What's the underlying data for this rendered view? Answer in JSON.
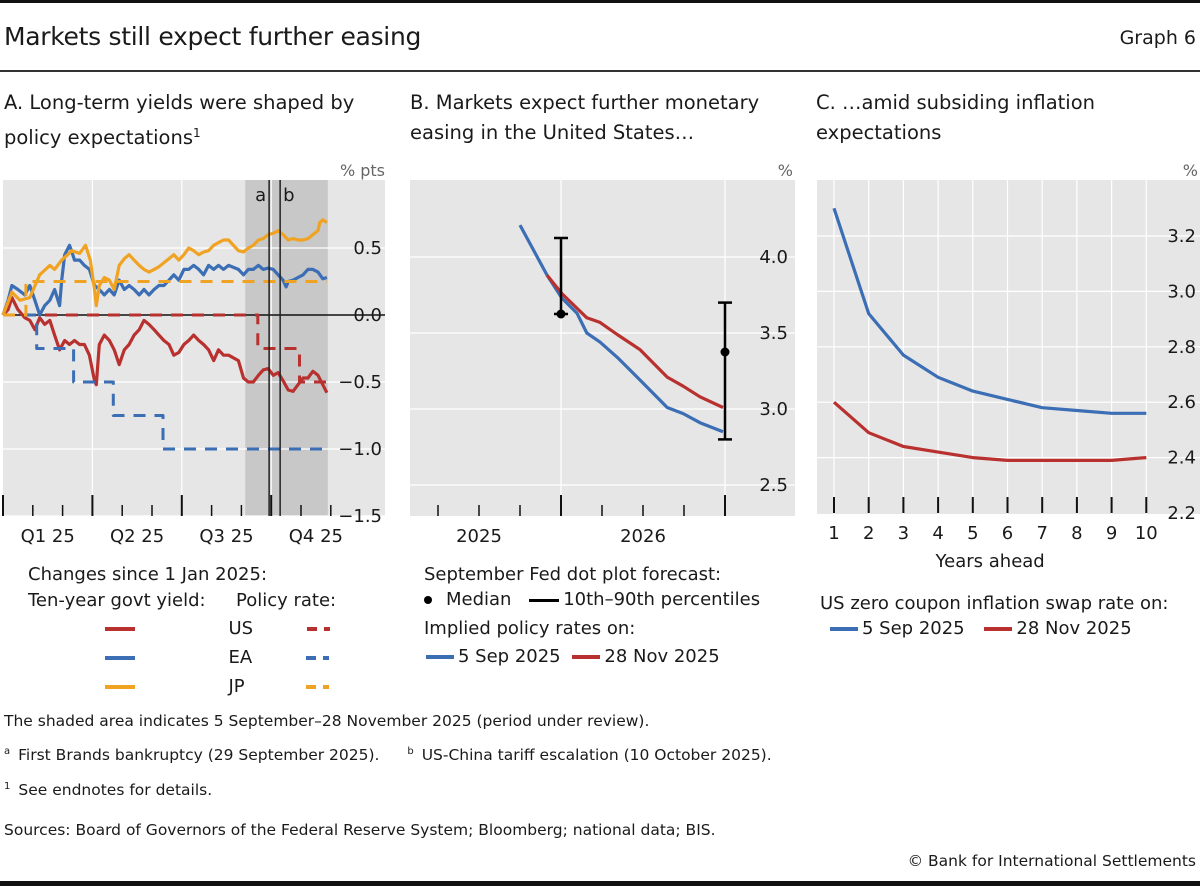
{
  "header": {
    "title": "Markets still expect further easing",
    "graph_number": "Graph 6"
  },
  "colors": {
    "us": "#b8312f",
    "ea": "#3b6eb4",
    "jp": "#f0a323",
    "plot_bg": "#e6e6e6",
    "shade": "#c8c8c8",
    "grid": "#ffffff",
    "axis": "#111111"
  },
  "panels": {
    "a": {
      "title": "A. Long-term yields were shaped by policy expectations",
      "title_sup": "1"
    },
    "b": {
      "title": "B. Markets expect further monetary easing in the United States…"
    },
    "c": {
      "title": "C. …amid subsiding inflation expectations"
    }
  },
  "legends": {
    "a": {
      "heading": "Changes since 1 Jan 2025:",
      "col1": "Ten-year govt yield:",
      "col2": "Policy rate:",
      "rows": [
        "US",
        "EA",
        "JP"
      ]
    },
    "b": {
      "heading": "September Fed dot plot forecast:",
      "median": "Median",
      "range": "10th–90th percentiles",
      "heading2": "Implied policy rates on:",
      "s1": "5 Sep 2025",
      "s2": "28 Nov 2025"
    },
    "c": {
      "heading": "US zero coupon inflation swap rate on:",
      "s1": "5 Sep 2025",
      "s2": "28 Nov 2025"
    }
  },
  "footnotes": {
    "shaded": "The shaded area indicates 5 September–28 November 2025 (period under review).",
    "a_mark": "a",
    "a_text": "First Brands bankruptcy (29 September 2025).",
    "b_mark": "b",
    "b_text": "US-China tariff escalation (10 October 2025).",
    "n1_mark": "1",
    "n1_text": "See endnotes for details.",
    "sources": "Sources: Board of Governors of the Federal Reserve System; Bloomberg; national data; BIS.",
    "copyright": "© Bank for International Settlements"
  },
  "chart_data": [
    {
      "id": "a",
      "type": "line",
      "title": "A. Long-term yields were shaped by policy expectations",
      "xlabel": "",
      "ylabel": "% pts",
      "x_unit": "months since 1 Jan 2025",
      "xlim": [
        0,
        12
      ],
      "ylim": [
        -1.6,
        0.85
      ],
      "yticks": [
        0.5,
        0.0,
        -0.5,
        -1.0,
        -1.5
      ],
      "ytick_labels": [
        "0.5",
        "0.0",
        "−0.5",
        "−1.0",
        "−1.5"
      ],
      "xtick_labels": [
        {
          "label": "Q1 25",
          "x": 1.5
        },
        {
          "label": "Q2 25",
          "x": 4.5
        },
        {
          "label": "Q3 25",
          "x": 7.5
        },
        {
          "label": "Q4 25",
          "x": 10.5
        }
      ],
      "major_ticks": [
        0,
        3,
        6,
        9
      ],
      "minor_ticks": [
        1,
        2,
        4,
        5,
        7,
        8,
        10,
        11
      ],
      "grid": true,
      "shaded_range": [
        8.13,
        10.9
      ],
      "event_lines": [
        {
          "label": "a",
          "x": 8.93
        },
        {
          "label": "b",
          "x": 9.3
        }
      ],
      "series": [
        {
          "name": "US ten-year govt yield",
          "color_key": "us",
          "style": "solid",
          "x": [
            0,
            0.17,
            0.3,
            0.5,
            0.73,
            0.9,
            1.07,
            1.23,
            1.4,
            1.57,
            1.73,
            1.9,
            2.07,
            2.23,
            2.4,
            2.57,
            2.73,
            2.9,
            3.07,
            3.13,
            3.23,
            3.4,
            3.57,
            3.73,
            3.9,
            4.07,
            4.23,
            4.4,
            4.57,
            4.73,
            4.9,
            5.07,
            5.23,
            5.4,
            5.57,
            5.73,
            5.9,
            6.07,
            6.23,
            6.4,
            6.57,
            6.73,
            6.9,
            7.07,
            7.23,
            7.4,
            7.57,
            7.9,
            8.07,
            8.23,
            8.4,
            8.57,
            8.73,
            8.9,
            9.07,
            9.23,
            9.4,
            9.57,
            9.73,
            9.9,
            10.07,
            10.23,
            10.4,
            10.57,
            10.73,
            10.87
          ],
          "y": [
            0,
            0.04,
            0.13,
            0.04,
            -0.02,
            -0.04,
            -0.11,
            -0.02,
            -0.07,
            -0.04,
            -0.15,
            -0.26,
            -0.19,
            -0.22,
            -0.19,
            -0.22,
            -0.22,
            -0.3,
            -0.49,
            -0.52,
            -0.22,
            -0.15,
            -0.19,
            -0.26,
            -0.37,
            -0.26,
            -0.22,
            -0.15,
            -0.11,
            -0.04,
            -0.07,
            -0.11,
            -0.15,
            -0.19,
            -0.22,
            -0.3,
            -0.28,
            -0.22,
            -0.19,
            -0.15,
            -0.19,
            -0.22,
            -0.26,
            -0.34,
            -0.26,
            -0.3,
            -0.3,
            -0.34,
            -0.47,
            -0.5,
            -0.5,
            -0.45,
            -0.41,
            -0.4,
            -0.45,
            -0.43,
            -0.49,
            -0.56,
            -0.57,
            -0.52,
            -0.47,
            -0.47,
            -0.42,
            -0.45,
            -0.52,
            -0.58
          ]
        },
        {
          "name": "EA ten-year govt yield",
          "color_key": "ea",
          "style": "solid",
          "x": [
            0,
            0.17,
            0.3,
            0.5,
            0.73,
            0.9,
            1.07,
            1.23,
            1.4,
            1.57,
            1.73,
            1.9,
            1.97,
            2.07,
            2.23,
            2.3,
            2.4,
            2.57,
            2.73,
            2.9,
            3.07,
            3.23,
            3.4,
            3.57,
            3.73,
            3.9,
            4.07,
            4.23,
            4.4,
            4.57,
            4.73,
            4.9,
            5.07,
            5.23,
            5.4,
            5.57,
            5.73,
            5.9,
            6.07,
            6.23,
            6.4,
            6.57,
            6.73,
            6.9,
            7.07,
            7.23,
            7.4,
            7.57,
            7.9,
            8.07,
            8.23,
            8.4,
            8.57,
            8.73,
            8.9,
            9.07,
            9.23,
            9.4,
            9.5,
            9.57,
            9.73,
            9.9,
            10.07,
            10.23,
            10.4,
            10.57,
            10.73,
            10.87
          ],
          "y": [
            0,
            0.11,
            0.22,
            0.19,
            0.15,
            0.22,
            0.11,
            0,
            0.07,
            0.11,
            0.19,
            0.07,
            0.26,
            0.45,
            0.52,
            0.48,
            0.41,
            0.41,
            0.37,
            0.34,
            0.22,
            0.19,
            0.15,
            0.19,
            0.15,
            0.26,
            0.19,
            0.22,
            0.19,
            0.15,
            0.19,
            0.15,
            0.19,
            0.22,
            0.22,
            0.26,
            0.3,
            0.26,
            0.34,
            0.34,
            0.37,
            0.34,
            0.3,
            0.37,
            0.34,
            0.37,
            0.34,
            0.37,
            0.34,
            0.3,
            0.34,
            0.34,
            0.37,
            0.34,
            0.35,
            0.34,
            0.3,
            0.26,
            0.21,
            0.25,
            0.26,
            0.28,
            0.3,
            0.34,
            0.34,
            0.32,
            0.27,
            0.28
          ]
        },
        {
          "name": "JP ten-year govt yield",
          "color_key": "jp",
          "style": "solid",
          "x": [
            0,
            0.3,
            0.57,
            0.9,
            1.23,
            1.57,
            1.73,
            1.97,
            2.17,
            2.3,
            2.57,
            2.77,
            2.93,
            3.07,
            3.13,
            3.23,
            3.4,
            3.57,
            3.73,
            3.9,
            4.07,
            4.23,
            4.4,
            4.57,
            4.73,
            4.9,
            5.07,
            5.23,
            5.4,
            5.57,
            5.73,
            5.9,
            6.07,
            6.23,
            6.4,
            6.57,
            6.73,
            6.9,
            7.07,
            7.23,
            7.4,
            7.57,
            7.9,
            8.07,
            8.23,
            8.4,
            8.57,
            8.73,
            8.9,
            9.07,
            9.23,
            9.4,
            9.57,
            9.73,
            9.9,
            10.07,
            10.23,
            10.4,
            10.57,
            10.63,
            10.73,
            10.87
          ],
          "y": [
            0,
            0.17,
            0.11,
            0.13,
            0.3,
            0.37,
            0.34,
            0.41,
            0.45,
            0.48,
            0.46,
            0.52,
            0.41,
            0.19,
            0.07,
            0.22,
            0.28,
            0.26,
            0.19,
            0.37,
            0.42,
            0.45,
            0.41,
            0.37,
            0.34,
            0.32,
            0.34,
            0.36,
            0.39,
            0.42,
            0.45,
            0.41,
            0.45,
            0.5,
            0.48,
            0.45,
            0.47,
            0.48,
            0.52,
            0.54,
            0.56,
            0.56,
            0.48,
            0.47,
            0.5,
            0.52,
            0.56,
            0.57,
            0.6,
            0.61,
            0.63,
            0.6,
            0.56,
            0.57,
            0.56,
            0.56,
            0.57,
            0.6,
            0.63,
            0.69,
            0.71,
            0.69
          ]
        },
        {
          "name": "US policy rate",
          "color_key": "us",
          "style": "dashed",
          "x": [
            0,
            8.55,
            8.55,
            9.95,
            9.95,
            10.87
          ],
          "y": [
            0,
            0,
            -0.25,
            -0.25,
            -0.5,
            -0.5
          ]
        },
        {
          "name": "EA policy rate",
          "color_key": "ea",
          "style": "dashed",
          "x": [
            0,
            1.13,
            1.13,
            2.37,
            2.37,
            3.7,
            3.7,
            5.37,
            5.37,
            10.87
          ],
          "y": [
            0,
            0,
            -0.25,
            -0.25,
            -0.5,
            -0.5,
            -0.75,
            -0.75,
            -1.0,
            -1.0
          ]
        },
        {
          "name": "JP policy rate",
          "color_key": "jp",
          "style": "dashed",
          "x": [
            0,
            0.77,
            0.77,
            10.87
          ],
          "y": [
            0,
            0,
            0.25,
            0.25
          ]
        }
      ]
    },
    {
      "id": "b",
      "type": "line",
      "title": "B. Markets expect further monetary easing in the United States…",
      "xlabel": "",
      "ylabel": "%",
      "x_unit": "quarters since start of 2025",
      "xlim": [
        0.3,
        9.6
      ],
      "ylim": [
        2.2,
        4.7
      ],
      "yticks": [
        4.0,
        3.5,
        3.0,
        2.5
      ],
      "ytick_labels": [
        "4.0",
        "3.5",
        "3.0",
        "2.5"
      ],
      "xtick_labels": [
        {
          "label": "2025",
          "x": 2
        },
        {
          "label": "2026",
          "x": 6
        }
      ],
      "major_ticks": [
        4,
        8
      ],
      "minor_ticks": [
        1,
        2,
        3,
        5,
        6,
        7
      ],
      "grid": true,
      "series": [
        {
          "name": "Implied policy rates on 5 Sep 2025",
          "color_key": "ea",
          "x": [
            3.0,
            3.66,
            4.02,
            4.39,
            4.63,
            4.95,
            5.37,
            5.93,
            6.59,
            6.98,
            7.39,
            7.95
          ],
          "y": [
            4.21,
            3.88,
            3.73,
            3.63,
            3.5,
            3.44,
            3.34,
            3.19,
            3.01,
            2.97,
            2.91,
            2.85
          ]
        },
        {
          "name": "Implied policy rates on 28 Nov 2025",
          "color_key": "us",
          "x": [
            3.66,
            4.02,
            4.63,
            4.95,
            5.37,
            5.93,
            6.59,
            6.98,
            7.39,
            7.95
          ],
          "y": [
            3.88,
            3.76,
            3.6,
            3.57,
            3.49,
            3.39,
            3.21,
            3.15,
            3.08,
            3.01
          ]
        }
      ],
      "dot_plot": [
        {
          "x": 4,
          "median": 3.625,
          "p10": 3.625,
          "p90": 4.125
        },
        {
          "x": 8,
          "median": 3.375,
          "p10": 2.8,
          "p90": 3.7
        }
      ]
    },
    {
      "id": "c",
      "type": "line",
      "title": "C. …amid subsiding inflation expectations",
      "xlabel": "Years ahead",
      "ylabel": "%",
      "x": [
        1,
        2,
        3,
        4,
        5,
        6,
        7,
        8,
        9,
        10
      ],
      "xlim": [
        0.5,
        10.5
      ],
      "ylim": [
        2.15,
        3.4
      ],
      "yticks": [
        3.2,
        3.0,
        2.8,
        2.6,
        2.4,
        2.2
      ],
      "ytick_labels": [
        "3.2",
        "3.0",
        "2.8",
        "2.6",
        "2.4",
        "2.2"
      ],
      "xtick_labels": [
        "1",
        "2",
        "3",
        "4",
        "5",
        "6",
        "7",
        "8",
        "9",
        "10"
      ],
      "grid": true,
      "series": [
        {
          "name": "5 Sep 2025",
          "color_key": "ea",
          "values": [
            3.3,
            2.92,
            2.77,
            2.69,
            2.64,
            2.61,
            2.58,
            2.57,
            2.56,
            2.56
          ]
        },
        {
          "name": "28 Nov 2025",
          "color_key": "us",
          "values": [
            2.6,
            2.49,
            2.44,
            2.42,
            2.4,
            2.39,
            2.39,
            2.39,
            2.39,
            2.4
          ]
        }
      ]
    }
  ]
}
